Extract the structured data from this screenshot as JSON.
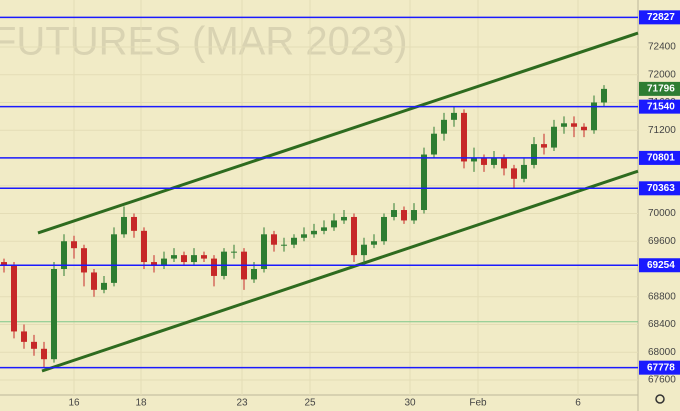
{
  "chart_data": {
    "type": "candlestick",
    "watermark": "FUTURES (MAR 2023)",
    "xlim": [
      -0.4,
      63.4
    ],
    "ylim": [
      67384,
      73077
    ],
    "xticks": [
      {
        "value": 7.0,
        "label": "16"
      },
      {
        "value": 13.7,
        "label": "18"
      },
      {
        "value": 23.8,
        "label": "23"
      },
      {
        "value": 30.6,
        "label": "25"
      },
      {
        "value": 40.6,
        "label": "30"
      },
      {
        "value": 47.4,
        "label": "Feb"
      },
      {
        "value": 57.4,
        "label": "6"
      }
    ],
    "yticks": [
      67600,
      68000,
      68400,
      68800,
      69200,
      69600,
      70000,
      70400,
      70800,
      71200,
      71600,
      72000,
      72400
    ],
    "grid": true,
    "up_color": "#2e7d32",
    "down_color": "#c62828",
    "x": [
      0,
      1,
      2,
      3,
      4,
      5,
      6,
      7,
      8,
      9,
      10,
      11,
      12,
      13,
      14,
      15,
      16,
      17,
      18,
      19,
      20,
      21,
      22,
      23,
      24,
      25,
      26,
      27,
      28,
      29,
      30,
      31,
      32,
      33,
      34,
      35,
      36,
      37,
      38,
      39,
      40,
      41,
      42,
      43,
      44,
      45,
      46,
      47,
      48,
      49,
      50,
      51,
      52,
      53,
      54,
      55,
      56,
      57,
      58,
      59,
      60
    ],
    "open": [
      69300,
      69250,
      68300,
      68150,
      68050,
      67900,
      69200,
      69600,
      69500,
      69150,
      68900,
      69000,
      69700,
      69950,
      69750,
      69300,
      69250,
      69350,
      69400,
      69300,
      69400,
      69350,
      69100,
      69450,
      69450,
      69050,
      69200,
      69700,
      69550,
      69550,
      69650,
      69700,
      69750,
      69800,
      69900,
      69950,
      69400,
      69550,
      69600,
      69950,
      70050,
      69900,
      70050,
      70850,
      71150,
      71350,
      71450,
      70750,
      70800,
      70700,
      70800,
      70650,
      70500,
      70700,
      71000,
      70950,
      71250,
      71300,
      71250,
      71200,
      71600
    ],
    "high": [
      69350,
      69300,
      68400,
      68250,
      68150,
      69300,
      69700,
      69680,
      69550,
      69200,
      69100,
      69800,
      70100,
      70000,
      69800,
      69400,
      69450,
      69500,
      69450,
      69500,
      69450,
      69400,
      69500,
      69550,
      69500,
      69300,
      69800,
      69750,
      69650,
      69700,
      69800,
      69850,
      69900,
      70000,
      70050,
      70000,
      69650,
      69700,
      70000,
      70150,
      70100,
      70150,
      70950,
      71250,
      71450,
      71540,
      71500,
      70950,
      70850,
      70900,
      70850,
      70700,
      70800,
      71100,
      71150,
      71350,
      71400,
      71400,
      71300,
      71700,
      71850
    ],
    "low": [
      69150,
      68200,
      68050,
      67950,
      67778,
      67850,
      69100,
      69350,
      68950,
      68800,
      68850,
      68950,
      69650,
      69650,
      69200,
      69150,
      69200,
      69300,
      69250,
      69250,
      69300,
      68950,
      69050,
      69350,
      68900,
      69000,
      69150,
      69450,
      69450,
      69500,
      69600,
      69650,
      69700,
      69750,
      69850,
      69300,
      69254,
      69500,
      69550,
      69900,
      69850,
      69850,
      70000,
      70800,
      71050,
      71250,
      70650,
      70600,
      70600,
      70650,
      70550,
      70363,
      70450,
      70650,
      70850,
      70900,
      71150,
      71100,
      71100,
      71150,
      71550
    ],
    "close": [
      69250,
      68300,
      68150,
      68050,
      67900,
      69200,
      69600,
      69500,
      69150,
      68900,
      69000,
      69700,
      69950,
      69750,
      69300,
      69250,
      69350,
      69400,
      69300,
      69400,
      69350,
      69100,
      69450,
      69450,
      69050,
      69200,
      69700,
      69550,
      69550,
      69650,
      69700,
      69750,
      69800,
      69900,
      69950,
      69400,
      69550,
      69600,
      69950,
      70050,
      69900,
      70050,
      70850,
      71150,
      71350,
      71450,
      70750,
      70800,
      70700,
      70800,
      70650,
      70500,
      70700,
      71000,
      70950,
      71250,
      71300,
      71250,
      71200,
      71600,
      71796
    ],
    "levels": [
      {
        "value": 72827,
        "color": "#1a1aff"
      },
      {
        "value": 71540,
        "color": "#1a1aff"
      },
      {
        "value": 70801,
        "color": "#1a1aff"
      },
      {
        "value": 70363,
        "color": "#1a1aff"
      },
      {
        "value": 69254,
        "color": "#1a1aff"
      },
      {
        "value": 67778,
        "color": "#1a1aff"
      }
    ],
    "support_level": {
      "value": 68440,
      "color": "#7fc88a"
    },
    "last_price": {
      "value": 71796,
      "color": "#2e7d32"
    },
    "trend_lines": [
      {
        "x": [
          3.4,
          63.4
        ],
        "y": [
          69720,
          72600
        ],
        "color": "#2e6b1f"
      },
      {
        "x": [
          3.8,
          63.4
        ],
        "y": [
          67730,
          70610
        ],
        "color": "#2e6b1f"
      }
    ]
  }
}
